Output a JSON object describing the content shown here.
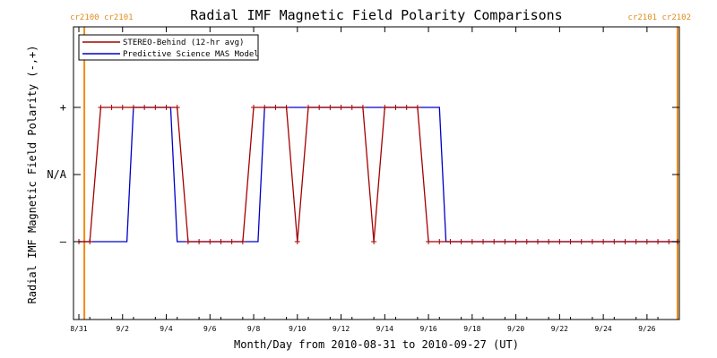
{
  "chart_data": {
    "type": "line",
    "title": "Radial IMF Magnetic Field Polarity Comparisons",
    "xlabel": "Month/Day from 2010-08-31 to 2010-09-27 (UT)",
    "ylabel": "Radial IMF Magnetic Field Polarity (-,+)",
    "x_range_days": [
      0,
      27.5
    ],
    "ylim": [
      -1.6,
      1.6
    ],
    "x_tick_labels": [
      "8/31",
      "9/2",
      "9/4",
      "9/6",
      "9/8",
      "9/10",
      "9/12",
      "9/14",
      "9/16",
      "9/18",
      "9/20",
      "9/22",
      "9/24",
      "9/26"
    ],
    "x_tick_days": [
      0,
      2,
      4,
      6,
      8,
      10,
      12,
      14,
      16,
      18,
      20,
      22,
      24,
      26
    ],
    "y_ticks": [
      {
        "value": 1,
        "label": "+"
      },
      {
        "value": 0,
        "label": "N/A"
      },
      {
        "value": -1,
        "label": "–"
      }
    ],
    "legend_position": "top-left",
    "grid": false,
    "colors": {
      "stereo": "#a30000",
      "model": "#0000c8",
      "carrington": "#f08c14",
      "axis": "#000000"
    },
    "carrington_lines": [
      {
        "day": 0.25,
        "label": "cr2100 cr2101",
        "label_side": "left"
      },
      {
        "day": 27.4,
        "label": "cr2101 cr2102",
        "label_side": "right"
      }
    ],
    "series": [
      {
        "name": "STEREO-Behind (12-hr avg)",
        "markers": true,
        "points": [
          [
            0.0,
            -1
          ],
          [
            0.5,
            -1
          ],
          [
            1.0,
            1
          ],
          [
            1.5,
            1
          ],
          [
            2.0,
            1
          ],
          [
            2.5,
            1
          ],
          [
            3.0,
            1
          ],
          [
            3.5,
            1
          ],
          [
            4.0,
            1
          ],
          [
            4.5,
            1
          ],
          [
            5.0,
            -1
          ],
          [
            5.5,
            -1
          ],
          [
            6.0,
            -1
          ],
          [
            6.5,
            -1
          ],
          [
            7.0,
            -1
          ],
          [
            7.5,
            -1
          ],
          [
            8.0,
            1
          ],
          [
            8.5,
            1
          ],
          [
            9.0,
            1
          ],
          [
            9.5,
            1
          ],
          [
            10.0,
            -1
          ],
          [
            10.5,
            1
          ],
          [
            11.0,
            1
          ],
          [
            11.5,
            1
          ],
          [
            12.0,
            1
          ],
          [
            12.5,
            1
          ],
          [
            13.0,
            1
          ],
          [
            13.5,
            -1
          ],
          [
            14.0,
            1
          ],
          [
            14.5,
            1
          ],
          [
            15.0,
            1
          ],
          [
            15.5,
            1
          ],
          [
            16.0,
            -1
          ],
          [
            16.5,
            -1
          ],
          [
            17.0,
            -1
          ],
          [
            17.5,
            -1
          ],
          [
            18.0,
            -1
          ],
          [
            18.5,
            -1
          ],
          [
            19.0,
            -1
          ],
          [
            19.5,
            -1
          ],
          [
            20.0,
            -1
          ],
          [
            20.5,
            -1
          ],
          [
            21.0,
            -1
          ],
          [
            21.5,
            -1
          ],
          [
            22.0,
            -1
          ],
          [
            22.5,
            -1
          ],
          [
            23.0,
            -1
          ],
          [
            23.5,
            -1
          ],
          [
            24.0,
            -1
          ],
          [
            24.5,
            -1
          ],
          [
            25.0,
            -1
          ],
          [
            25.5,
            -1
          ],
          [
            26.0,
            -1
          ],
          [
            26.5,
            -1
          ],
          [
            27.0,
            -1
          ],
          [
            27.4,
            -1
          ]
        ]
      },
      {
        "name": "Predictive Science MAS Model",
        "markers": false,
        "points": [
          [
            0.0,
            -1
          ],
          [
            2.2,
            -1
          ],
          [
            2.5,
            1
          ],
          [
            4.2,
            1
          ],
          [
            4.5,
            -1
          ],
          [
            8.2,
            -1
          ],
          [
            8.5,
            1
          ],
          [
            16.5,
            1
          ],
          [
            16.8,
            -1
          ],
          [
            27.4,
            -1
          ]
        ]
      }
    ]
  }
}
